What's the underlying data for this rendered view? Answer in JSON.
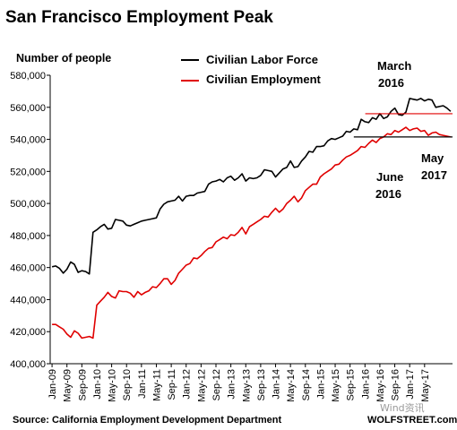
{
  "chart_data": {
    "type": "line",
    "title": "San Francisco Employment Peak",
    "ylabel": "Number of people",
    "source": "Source: California Employment Development Department",
    "brand": "WOLFSTREET.com",
    "watermark": "Wind资讯",
    "ylim": [
      400000,
      580000
    ],
    "yticks": [
      400000,
      420000,
      440000,
      460000,
      480000,
      500000,
      520000,
      540000,
      560000,
      580000
    ],
    "ytick_labels": [
      "400,000",
      "420,000",
      "440,000",
      "460,000",
      "480,000",
      "500,000",
      "520,000",
      "540,000",
      "560,000",
      "580,000"
    ],
    "x_start": "Jan-09",
    "x_tick_labels": [
      "Jan-09",
      "May-09",
      "Sep-09",
      "Jan-10",
      "May-10",
      "Sep-10",
      "Jan-11",
      "May-11",
      "Sep-11",
      "Jan-12",
      "May-12",
      "Sep-12",
      "Jan-13",
      "May-13",
      "Sep-13",
      "Jan-14",
      "May-14",
      "Sep-14",
      "Jan-15",
      "May-15",
      "Sep-15",
      "Jan-16",
      "May-16",
      "Sep-16",
      "Jan-17",
      "May-17"
    ],
    "grid": false,
    "legend_position": "top",
    "series": [
      {
        "name": "Civilian Labor Force",
        "color": "#000000",
        "values": [
          460500,
          461000,
          459500,
          456500,
          459000,
          463500,
          462000,
          457000,
          458000,
          457500,
          456000,
          482000,
          483500,
          485500,
          487000,
          484000,
          484500,
          490000,
          489500,
          489000,
          486500,
          486000,
          487000,
          488000,
          489000,
          489500,
          490000,
          490500,
          491000,
          496500,
          499500,
          501000,
          501500,
          502000,
          504500,
          501500,
          504500,
          505000,
          505000,
          506500,
          507000,
          507500,
          512000,
          513500,
          514000,
          515000,
          513500,
          516000,
          517000,
          514500,
          516000,
          518500,
          514000,
          516000,
          515500,
          516000,
          517500,
          521000,
          520500,
          520000,
          516500,
          519000,
          521500,
          522500,
          526500,
          522500,
          523000,
          526500,
          529000,
          532500,
          532000,
          535500,
          535500,
          536000,
          539000,
          540500,
          540000,
          541000,
          542000,
          545000,
          544500,
          546500,
          546000,
          552500,
          551000,
          550500,
          553500,
          552500,
          556000,
          553000,
          554000,
          557500,
          559500,
          555500,
          555000,
          557000,
          565500,
          565000,
          564500,
          565500,
          564000,
          565000,
          564500,
          560000,
          560500,
          561000,
          559500,
          557500
        ],
        "annotations": [
          {
            "label_lines": [
              "March",
              "2016"
            ]
          },
          {
            "label_lines": [
              "May",
              "2017"
            ]
          }
        ]
      },
      {
        "name": "Civilian Employment",
        "color": "#e00000",
        "values": [
          424500,
          424500,
          423000,
          421500,
          418500,
          416500,
          420500,
          419000,
          416000,
          416500,
          417000,
          416000,
          436500,
          439000,
          441500,
          444500,
          442000,
          441000,
          445500,
          445000,
          445000,
          444000,
          441500,
          445000,
          443000,
          444500,
          445500,
          448000,
          447500,
          450000,
          453000,
          453000,
          449500,
          452000,
          456500,
          459000,
          461500,
          462500,
          466000,
          465500,
          467500,
          470000,
          472000,
          472500,
          476000,
          477500,
          479000,
          478000,
          480500,
          480000,
          482000,
          485000,
          481000,
          485500,
          487000,
          488500,
          490000,
          492000,
          491500,
          494500,
          497000,
          494500,
          496500,
          500000,
          502000,
          504500,
          501000,
          503500,
          508000,
          510000,
          512000,
          512000,
          516500,
          518500,
          520000,
          521500,
          524000,
          524500,
          527000,
          529000,
          530000,
          531500,
          533000,
          535500,
          535000,
          537500,
          539500,
          538000,
          540500,
          541500,
          543500,
          543000,
          545500,
          544500,
          546000,
          547500,
          545500,
          546500,
          547000,
          545000,
          545500,
          542500,
          544000,
          544500,
          543000,
          542500,
          542000,
          541500
        ],
        "annotations": [
          {
            "label_lines": [
              "June",
              "2016"
            ]
          }
        ]
      }
    ]
  }
}
